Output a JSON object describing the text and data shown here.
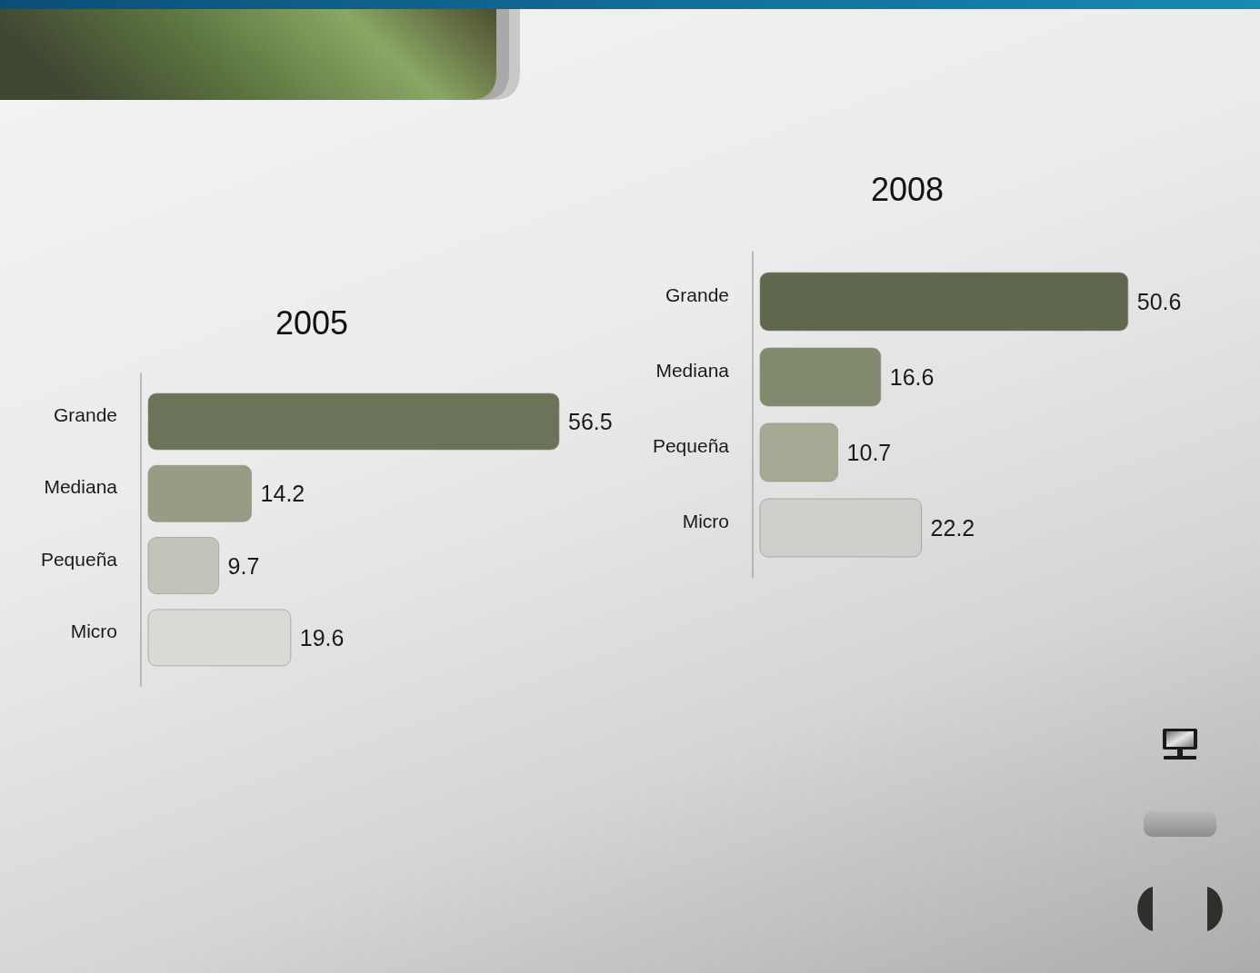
{
  "chart_data": [
    {
      "type": "bar",
      "orientation": "horizontal",
      "title": "2005",
      "categories": [
        "Grande",
        "Mediana",
        "Pequeña",
        "Micro"
      ],
      "values": [
        56.5,
        14.2,
        9.7,
        19.6
      ],
      "colors": [
        "#6b7459",
        "#979d85",
        "#c2c4b9",
        "#dadad6"
      ],
      "data_labels": true,
      "tick_labels": "y"
    },
    {
      "type": "bar",
      "orientation": "horizontal",
      "title": "2008",
      "categories": [
        "Grande",
        "Mediana",
        "Pequeña",
        "Micro"
      ],
      "values": [
        50.6,
        16.6,
        10.7,
        22.2
      ],
      "colors": [
        "#5f684d",
        "#828a6e",
        "#a6aa95",
        "#cfcfcb"
      ],
      "data_labels": true,
      "tick_labels": "y"
    }
  ]
}
